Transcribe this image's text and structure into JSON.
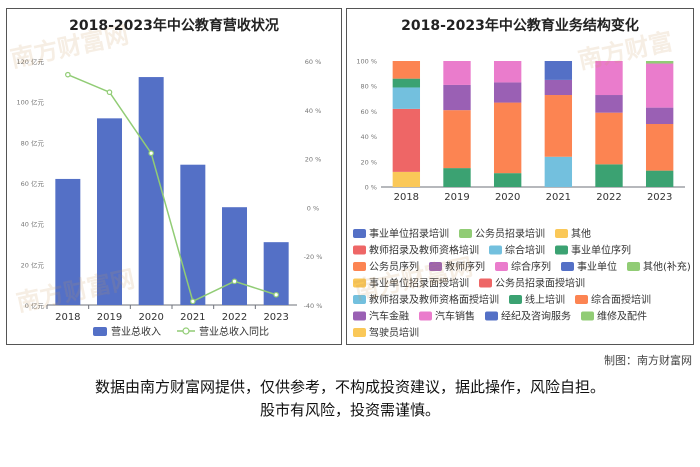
{
  "left_chart": {
    "title": "2018-2023年中公教育营收状况",
    "legend": {
      "bar_label": "营业总收入",
      "line_label": "营业总收入同比"
    },
    "colors": {
      "bar": "#5470c6",
      "line": "#91cc75"
    },
    "watermarks": [
      "南方财富网",
      "南方财富网"
    ]
  },
  "right_chart": {
    "title": "2018-2023年中公教育业务结构变化",
    "watermarks": [
      "南方财富",
      "南方财富网"
    ]
  },
  "chart_data": [
    {
      "type": "bar",
      "title": "2018-2023年中公教育营收状况",
      "categories": [
        "2018",
        "2019",
        "2020",
        "2021",
        "2022",
        "2023"
      ],
      "series": [
        {
          "name": "营业总收入",
          "type": "bar",
          "axis": "left",
          "values": [
            62,
            91.8,
            112.1,
            69,
            48.1,
            30.9
          ]
        },
        {
          "name": "营业总收入同比",
          "type": "line",
          "axis": "right",
          "values": [
            54.4,
            47.2,
            22.2,
            -38.5,
            -30.3,
            -35.8
          ]
        }
      ],
      "ylim_left": [
        0,
        120
      ],
      "yticks_left": [
        "0 亿元",
        "20 亿元",
        "40 亿元",
        "60 亿元",
        "80 亿元",
        "100 亿元",
        "120 亿元"
      ],
      "ylim_right": [
        -40,
        60
      ],
      "yticks_right": [
        "-40 %",
        "-20 %",
        "0 %",
        "20 %",
        "40 %",
        "60 %"
      ],
      "grid": false,
      "legend_position": "bottom"
    },
    {
      "type": "bar",
      "stacked": true,
      "normalized": true,
      "title": "2018-2023年中公教育业务结构变化",
      "categories": [
        "2018",
        "2019",
        "2020",
        "2021",
        "2022",
        "2023"
      ],
      "ylim": [
        0,
        100
      ],
      "yticks": [
        "0 %",
        "20 %",
        "40 %",
        "60 %",
        "80 %",
        "100 %"
      ],
      "legend_position": "bottom",
      "legend": [
        {
          "name": "事业单位招录培训",
          "color": "#5470c6"
        },
        {
          "name": "公务员招录培训",
          "color": "#91cc75"
        },
        {
          "name": "其他",
          "color": "#fac858"
        },
        {
          "name": "教师招录及教师资格培训",
          "color": "#ee6666"
        },
        {
          "name": "综合培训",
          "color": "#73c0de"
        },
        {
          "name": "事业单位序列",
          "color": "#3ba272"
        },
        {
          "name": "公务员序列",
          "color": "#fc8452"
        },
        {
          "name": "教师序列",
          "color": "#9a60b4"
        },
        {
          "name": "综合序列",
          "color": "#ea7ccc"
        },
        {
          "name": "事业单位",
          "color": "#5470c6"
        },
        {
          "name": "其他(补充)",
          "color": "#91cc75"
        },
        {
          "name": "事业单位招录面授培训",
          "color": "#fac858"
        },
        {
          "name": "公务员招录面授培训",
          "color": "#ee6666"
        },
        {
          "name": "教师招录及教师资格面授培训",
          "color": "#73c0de"
        },
        {
          "name": "线上培训",
          "color": "#3ba272"
        },
        {
          "name": "综合面授培训",
          "color": "#fc8452"
        },
        {
          "name": "汽车金融",
          "color": "#9a60b4"
        },
        {
          "name": "汽车销售",
          "color": "#ea7ccc"
        },
        {
          "name": "经纪及咨询服务",
          "color": "#5470c6"
        },
        {
          "name": "维修及配件",
          "color": "#91cc75"
        },
        {
          "name": "驾驶员培训",
          "color": "#fac858"
        }
      ],
      "segments": [
        {
          "category": "2018",
          "stack": [
            {
              "name": "其他",
              "color": "#fac858",
              "value": 12
            },
            {
              "name": "教师招录及教师资格培训",
              "color": "#ee6666",
              "value": 50
            },
            {
              "name": "综合培训",
              "color": "#73c0de",
              "value": 17
            },
            {
              "name": "事业单位序列",
              "color": "#3ba272",
              "value": 7
            },
            {
              "name": "公务员序列",
              "color": "#fc8452",
              "value": 14
            }
          ]
        },
        {
          "category": "2019",
          "stack": [
            {
              "name": "线上培训",
              "color": "#3ba272",
              "value": 15
            },
            {
              "name": "综合面授培训",
              "color": "#fc8452",
              "value": 46
            },
            {
              "name": "教师序列",
              "color": "#9a60b4",
              "value": 20
            },
            {
              "name": "综合序列",
              "color": "#ea7ccc",
              "value": 19
            }
          ]
        },
        {
          "category": "2020",
          "stack": [
            {
              "name": "线上培训",
              "color": "#3ba272",
              "value": 11
            },
            {
              "name": "综合面授培训",
              "color": "#fc8452",
              "value": 56
            },
            {
              "name": "教师序列",
              "color": "#9a60b4",
              "value": 16
            },
            {
              "name": "综合序列",
              "color": "#ea7ccc",
              "value": 17
            }
          ]
        },
        {
          "category": "2021",
          "stack": [
            {
              "name": "教师招录及教师资格面授培训",
              "color": "#73c0de",
              "value": 24
            },
            {
              "name": "综合面授培训",
              "color": "#fc8452",
              "value": 49
            },
            {
              "name": "教师序列",
              "color": "#9a60b4",
              "value": 12
            },
            {
              "name": "事业单位",
              "color": "#5470c6",
              "value": 15
            }
          ]
        },
        {
          "category": "2022",
          "stack": [
            {
              "name": "线上培训",
              "color": "#3ba272",
              "value": 18
            },
            {
              "name": "综合面授培训",
              "color": "#fc8452",
              "value": 41
            },
            {
              "name": "教师序列",
              "color": "#9a60b4",
              "value": 14
            },
            {
              "name": "综合序列",
              "color": "#ea7ccc",
              "value": 27
            }
          ]
        },
        {
          "category": "2023",
          "stack": [
            {
              "name": "线上培训",
              "color": "#3ba272",
              "value": 13
            },
            {
              "name": "综合面授培训",
              "color": "#fc8452",
              "value": 37
            },
            {
              "name": "教师序列",
              "color": "#9a60b4",
              "value": 13
            },
            {
              "name": "综合序列",
              "color": "#ea7ccc",
              "value": 35
            },
            {
              "name": "其他(补充)",
              "color": "#91cc75",
              "value": 2
            }
          ]
        }
      ]
    }
  ],
  "footer": {
    "credit": "制图：南方财富网",
    "disclaimer_line1": "数据由南方财富网提供，仅供参考，不构成投资建议，据此操作，风险自担。",
    "disclaimer_line2": "股市有风险，投资需谨慎。"
  }
}
